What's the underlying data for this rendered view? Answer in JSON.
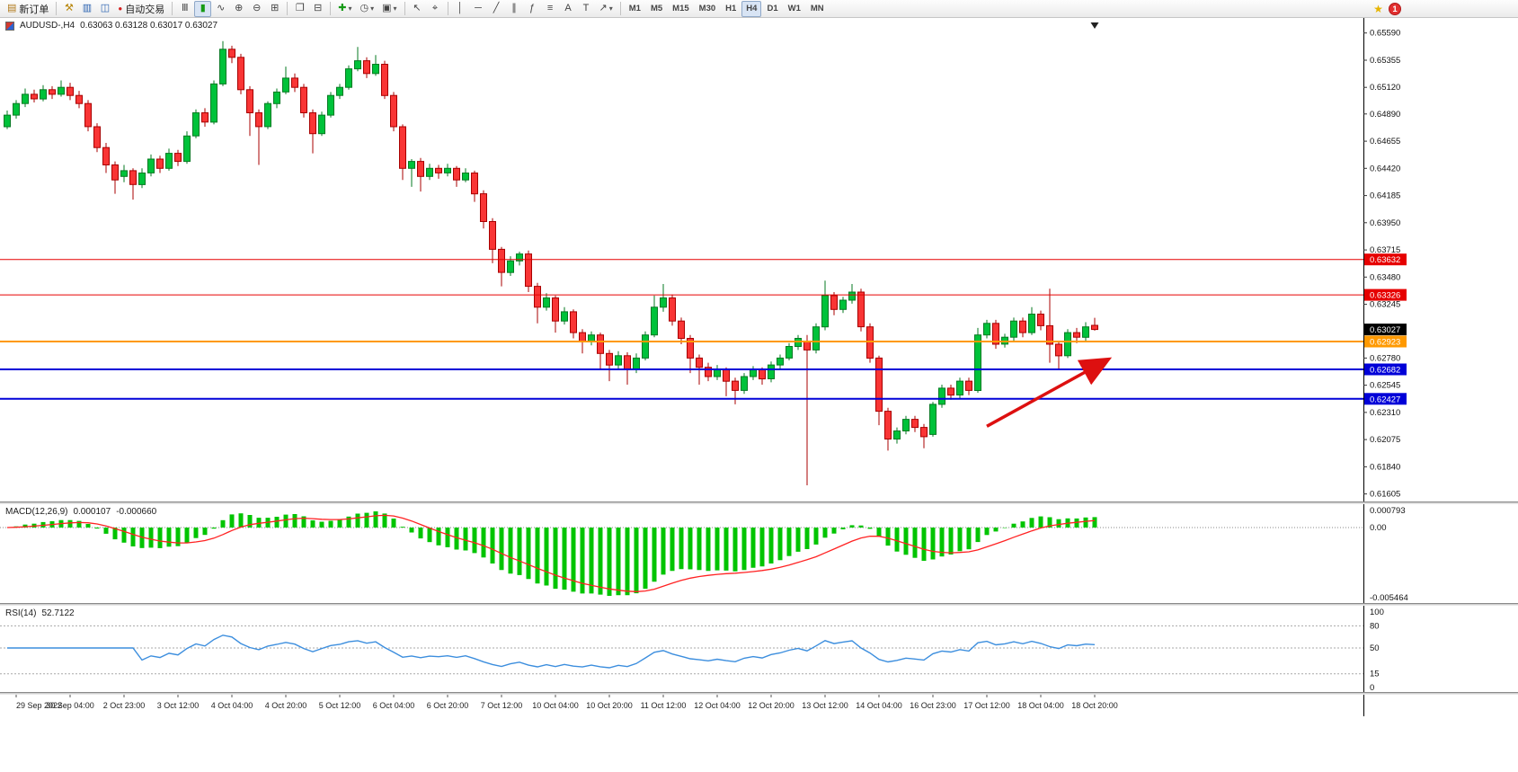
{
  "toolbar": {
    "new_order_label": "新订单",
    "autotrade_label": "自动交易",
    "timeframes": [
      "M1",
      "M5",
      "M15",
      "M30",
      "H1",
      "H4",
      "D1",
      "W1",
      "MN"
    ],
    "active_timeframe": "H4",
    "notification_count": "1"
  },
  "icons": {
    "new_order": "▤",
    "hammer": "⚒",
    "market_watch": "▥",
    "navigator": "◫",
    "autotrade_dot": "●",
    "chart_bars": "Ⅲ",
    "chart_candles": "▮",
    "chart_line": "∿",
    "zoom_in": "⊕",
    "zoom_out": "⊖",
    "tile_windows": "⊞",
    "cascade_windows": "❐",
    "arrange_windows": "⊟",
    "indicators_add": "✚",
    "periods_clock": "◷",
    "templates": "▣",
    "cursor": "↖",
    "crosshair": "⌖",
    "vertical_line": "│",
    "horizontal_line": "─",
    "trendline": "╱",
    "channel": "∥",
    "fibonacci": "ƒ",
    "shapes": "≡",
    "text": "A",
    "text_label": "T",
    "arrows": "↗",
    "dropdown": "▾",
    "star": "★"
  },
  "colors": {
    "bull": "#00c23a",
    "bull_stroke": "#057a22",
    "bear": "#f93535",
    "bear_stroke": "#a80000",
    "macd_hist": "#00c400",
    "macd_signal": "#ff2222",
    "rsi_line": "#3c8ede",
    "arrow": "#dd1010",
    "axis_text": "#111111"
  },
  "chart": {
    "symbol_period": "AUDUSD-,H4",
    "ohlc": "0.63063 0.63128 0.63017 0.63027",
    "scale": {
      "max": 0.6572,
      "min": 0.6154
    },
    "price_axis_labels": [
      "0.65590",
      "0.65355",
      "0.65120",
      "0.64890",
      "0.64655",
      "0.64420",
      "0.64185",
      "0.63950",
      "0.63715",
      "0.63480",
      "0.63245",
      "0.62780",
      "0.62545",
      "0.62310",
      "0.62075",
      "0.61840",
      "0.61605"
    ],
    "levels": [
      {
        "label": "0.63632",
        "price": 0.63632,
        "color": "#e60000",
        "width": 1,
        "line": true
      },
      {
        "label": "0.63326",
        "price": 0.63326,
        "color": "#e60000",
        "width": 1,
        "line": true
      },
      {
        "label": "0.63027",
        "price": 0.63027,
        "color": "#000000",
        "width": 1,
        "line": false
      },
      {
        "label": "0.62923",
        "price": 0.62923,
        "color": "#ff9900",
        "width": 2,
        "line": true
      },
      {
        "label": "0.62682",
        "price": 0.62682,
        "color": "#0000d8",
        "width": 2,
        "line": true
      },
      {
        "label": "0.62427",
        "price": 0.62427,
        "color": "#0000d8",
        "width": 2,
        "line": true
      }
    ],
    "arrow": {
      "i1": 109,
      "p1": 0.6219,
      "i2": 122.3,
      "p2": 0.6276
    },
    "time_labels": [
      {
        "i": 1,
        "t": "29 Sep 2022"
      },
      {
        "i": 7,
        "t": "30 Sep 04:00"
      },
      {
        "i": 13,
        "t": "2 Oct 23:00"
      },
      {
        "i": 19,
        "t": "3 Oct 12:00"
      },
      {
        "i": 25,
        "t": "4 Oct 04:00"
      },
      {
        "i": 31,
        "t": "4 Oct 20:00"
      },
      {
        "i": 37,
        "t": "5 Oct 12:00"
      },
      {
        "i": 43,
        "t": "6 Oct 04:00"
      },
      {
        "i": 49,
        "t": "6 Oct 20:00"
      },
      {
        "i": 55,
        "t": "7 Oct 12:00"
      },
      {
        "i": 61,
        "t": "10 Oct 04:00"
      },
      {
        "i": 67,
        "t": "10 Oct 20:00"
      },
      {
        "i": 73,
        "t": "11 Oct 12:00"
      },
      {
        "i": 79,
        "t": "12 Oct 04:00"
      },
      {
        "i": 85,
        "t": "12 Oct 20:00"
      },
      {
        "i": 91,
        "t": "13 Oct 12:00"
      },
      {
        "i": 97,
        "t": "14 Oct 04:00"
      },
      {
        "i": 103,
        "t": "16 Oct 23:00"
      },
      {
        "i": 109,
        "t": "17 Oct 12:00"
      },
      {
        "i": 115,
        "t": "18 Oct 04:00"
      },
      {
        "i": 121,
        "t": "18 Oct 20:00"
      }
    ],
    "candles": [
      [
        0.6478,
        0.6492,
        0.6476,
        0.6488
      ],
      [
        0.6488,
        0.6501,
        0.6485,
        0.6498
      ],
      [
        0.6498,
        0.6511,
        0.6495,
        0.6506
      ],
      [
        0.6506,
        0.651,
        0.6499,
        0.6502
      ],
      [
        0.6502,
        0.6514,
        0.65,
        0.651
      ],
      [
        0.651,
        0.6513,
        0.6502,
        0.6506
      ],
      [
        0.6506,
        0.6518,
        0.6504,
        0.6512
      ],
      [
        0.6512,
        0.6516,
        0.6501,
        0.6505
      ],
      [
        0.6505,
        0.6509,
        0.6494,
        0.6498
      ],
      [
        0.6498,
        0.6501,
        0.6474,
        0.6478
      ],
      [
        0.6478,
        0.6481,
        0.6456,
        0.646
      ],
      [
        0.646,
        0.6464,
        0.6438,
        0.6445
      ],
      [
        0.6445,
        0.6448,
        0.642,
        0.6432
      ],
      [
        0.6435,
        0.6445,
        0.643,
        0.644
      ],
      [
        0.644,
        0.6442,
        0.6415,
        0.6428
      ],
      [
        0.6428,
        0.6442,
        0.6425,
        0.6438
      ],
      [
        0.6438,
        0.6454,
        0.6435,
        0.645
      ],
      [
        0.645,
        0.6453,
        0.6438,
        0.6442
      ],
      [
        0.6442,
        0.6459,
        0.644,
        0.6455
      ],
      [
        0.6455,
        0.6458,
        0.6444,
        0.6448
      ],
      [
        0.6448,
        0.6474,
        0.6446,
        0.647
      ],
      [
        0.647,
        0.6493,
        0.6468,
        0.649
      ],
      [
        0.649,
        0.6494,
        0.6478,
        0.6482
      ],
      [
        0.6482,
        0.6518,
        0.648,
        0.6515
      ],
      [
        0.6515,
        0.6552,
        0.6513,
        0.6545
      ],
      [
        0.6545,
        0.6548,
        0.6533,
        0.6538
      ],
      [
        0.6538,
        0.6541,
        0.6506,
        0.651
      ],
      [
        0.651,
        0.6513,
        0.647,
        0.649
      ],
      [
        0.649,
        0.6493,
        0.6445,
        0.6478
      ],
      [
        0.6478,
        0.65,
        0.6476,
        0.6498
      ],
      [
        0.6498,
        0.6511,
        0.6494,
        0.6508
      ],
      [
        0.6508,
        0.653,
        0.6506,
        0.652
      ],
      [
        0.652,
        0.6524,
        0.6508,
        0.6512
      ],
      [
        0.6512,
        0.6515,
        0.6486,
        0.649
      ],
      [
        0.649,
        0.6493,
        0.6455,
        0.6472
      ],
      [
        0.6472,
        0.6491,
        0.647,
        0.6488
      ],
      [
        0.6488,
        0.6508,
        0.6486,
        0.6505
      ],
      [
        0.6505,
        0.6515,
        0.6502,
        0.6512
      ],
      [
        0.6512,
        0.6531,
        0.651,
        0.6528
      ],
      [
        0.6528,
        0.6547,
        0.6526,
        0.6535
      ],
      [
        0.6535,
        0.6538,
        0.652,
        0.6524
      ],
      [
        0.6524,
        0.654,
        0.6522,
        0.6532
      ],
      [
        0.6532,
        0.6535,
        0.6502,
        0.6505
      ],
      [
        0.6505,
        0.6508,
        0.6474,
        0.6478
      ],
      [
        0.6478,
        0.648,
        0.6432,
        0.6442
      ],
      [
        0.6442,
        0.645,
        0.6426,
        0.6448
      ],
      [
        0.6448,
        0.6451,
        0.6422,
        0.6435
      ],
      [
        0.6435,
        0.6446,
        0.6432,
        0.6442
      ],
      [
        0.6442,
        0.6445,
        0.6433,
        0.6438
      ],
      [
        0.6438,
        0.6446,
        0.6435,
        0.6442
      ],
      [
        0.6442,
        0.6444,
        0.6426,
        0.6432
      ],
      [
        0.6432,
        0.6442,
        0.643,
        0.6438
      ],
      [
        0.6438,
        0.644,
        0.6413,
        0.642
      ],
      [
        0.642,
        0.6423,
        0.639,
        0.6396
      ],
      [
        0.6396,
        0.6399,
        0.636,
        0.6372
      ],
      [
        0.6372,
        0.6374,
        0.634,
        0.6352
      ],
      [
        0.6352,
        0.6366,
        0.6349,
        0.6362
      ],
      [
        0.6362,
        0.637,
        0.6358,
        0.6368
      ],
      [
        0.6368,
        0.6371,
        0.6335,
        0.634
      ],
      [
        0.634,
        0.6343,
        0.6308,
        0.6322
      ],
      [
        0.6322,
        0.6334,
        0.6319,
        0.633
      ],
      [
        0.633,
        0.6332,
        0.63,
        0.631
      ],
      [
        0.631,
        0.6322,
        0.6307,
        0.6318
      ],
      [
        0.6318,
        0.632,
        0.6295,
        0.63
      ],
      [
        0.63,
        0.6303,
        0.6282,
        0.6292
      ],
      [
        0.6292,
        0.6301,
        0.6289,
        0.6298
      ],
      [
        0.6298,
        0.63,
        0.6268,
        0.6282
      ],
      [
        0.6282,
        0.6285,
        0.6258,
        0.6272
      ],
      [
        0.6272,
        0.6284,
        0.6269,
        0.628
      ],
      [
        0.628,
        0.6283,
        0.6255,
        0.6268
      ],
      [
        0.6268,
        0.6282,
        0.6265,
        0.6278
      ],
      [
        0.6278,
        0.6301,
        0.6276,
        0.6298
      ],
      [
        0.6298,
        0.6332,
        0.6296,
        0.6322
      ],
      [
        0.6322,
        0.6342,
        0.6318,
        0.633
      ],
      [
        0.633,
        0.6333,
        0.6306,
        0.631
      ],
      [
        0.631,
        0.6313,
        0.629,
        0.6295
      ],
      [
        0.6295,
        0.6298,
        0.6265,
        0.6278
      ],
      [
        0.6278,
        0.6281,
        0.6255,
        0.627
      ],
      [
        0.627,
        0.6274,
        0.6258,
        0.6262
      ],
      [
        0.6262,
        0.6272,
        0.6259,
        0.6268
      ],
      [
        0.6268,
        0.627,
        0.6245,
        0.6258
      ],
      [
        0.6258,
        0.6261,
        0.6238,
        0.625
      ],
      [
        0.625,
        0.6265,
        0.6247,
        0.6262
      ],
      [
        0.6262,
        0.6271,
        0.6259,
        0.6268
      ],
      [
        0.6268,
        0.627,
        0.6255,
        0.626
      ],
      [
        0.626,
        0.6275,
        0.6257,
        0.6272
      ],
      [
        0.6272,
        0.6281,
        0.6269,
        0.6278
      ],
      [
        0.6278,
        0.6291,
        0.6276,
        0.6288
      ],
      [
        0.6288,
        0.6298,
        0.6285,
        0.6295
      ],
      [
        0.6292,
        0.6298,
        0.6168,
        0.6285
      ],
      [
        0.6285,
        0.6308,
        0.6282,
        0.6305
      ],
      [
        0.6305,
        0.6345,
        0.6302,
        0.6332
      ],
      [
        0.6332,
        0.6335,
        0.6315,
        0.632
      ],
      [
        0.632,
        0.6331,
        0.6317,
        0.6328
      ],
      [
        0.6328,
        0.6342,
        0.6325,
        0.6335
      ],
      [
        0.6335,
        0.6338,
        0.6301,
        0.6305
      ],
      [
        0.6305,
        0.6308,
        0.6274,
        0.6278
      ],
      [
        0.6278,
        0.628,
        0.622,
        0.6232
      ],
      [
        0.6232,
        0.6235,
        0.6198,
        0.6208
      ],
      [
        0.6208,
        0.6218,
        0.6204,
        0.6215
      ],
      [
        0.6215,
        0.6228,
        0.6212,
        0.6225
      ],
      [
        0.6225,
        0.6228,
        0.6214,
        0.6218
      ],
      [
        0.6218,
        0.6221,
        0.62,
        0.621
      ],
      [
        0.6212,
        0.624,
        0.621,
        0.6238
      ],
      [
        0.6238,
        0.6255,
        0.6235,
        0.6252
      ],
      [
        0.6252,
        0.6255,
        0.6242,
        0.6246
      ],
      [
        0.6246,
        0.6261,
        0.6243,
        0.6258
      ],
      [
        0.6258,
        0.6261,
        0.6246,
        0.625
      ],
      [
        0.625,
        0.6304,
        0.6248,
        0.6298
      ],
      [
        0.6298,
        0.6311,
        0.6295,
        0.6308
      ],
      [
        0.6308,
        0.6311,
        0.6286,
        0.629
      ],
      [
        0.629,
        0.6299,
        0.6287,
        0.6296
      ],
      [
        0.6296,
        0.6313,
        0.6293,
        0.631
      ],
      [
        0.631,
        0.6313,
        0.6296,
        0.63
      ],
      [
        0.63,
        0.6322,
        0.6298,
        0.6316
      ],
      [
        0.6316,
        0.6319,
        0.6302,
        0.6306
      ],
      [
        0.6306,
        0.6338,
        0.6274,
        0.629
      ],
      [
        0.629,
        0.6293,
        0.6268,
        0.628
      ],
      [
        0.628,
        0.6303,
        0.6278,
        0.63
      ],
      [
        0.63,
        0.6304,
        0.6291,
        0.6296
      ],
      [
        0.6296,
        0.6309,
        0.6293,
        0.6305
      ],
      [
        0.63063,
        0.63128,
        0.63017,
        0.63027
      ]
    ]
  },
  "macd": {
    "name": "MACD(12,26,9)",
    "value": "0.000107",
    "signal": "-0.000660",
    "fast": 12,
    "slow": 26,
    "signal_period": 9,
    "axis_top": "0.000793",
    "axis_zero": "0.00",
    "axis_bottom": "-0.005464"
  },
  "rsi": {
    "name": "RSI(14)",
    "value": "52.7122",
    "period": 14,
    "axis_top": "100",
    "axis_bottom": "0",
    "levels": [
      80,
      50,
      15
    ]
  }
}
